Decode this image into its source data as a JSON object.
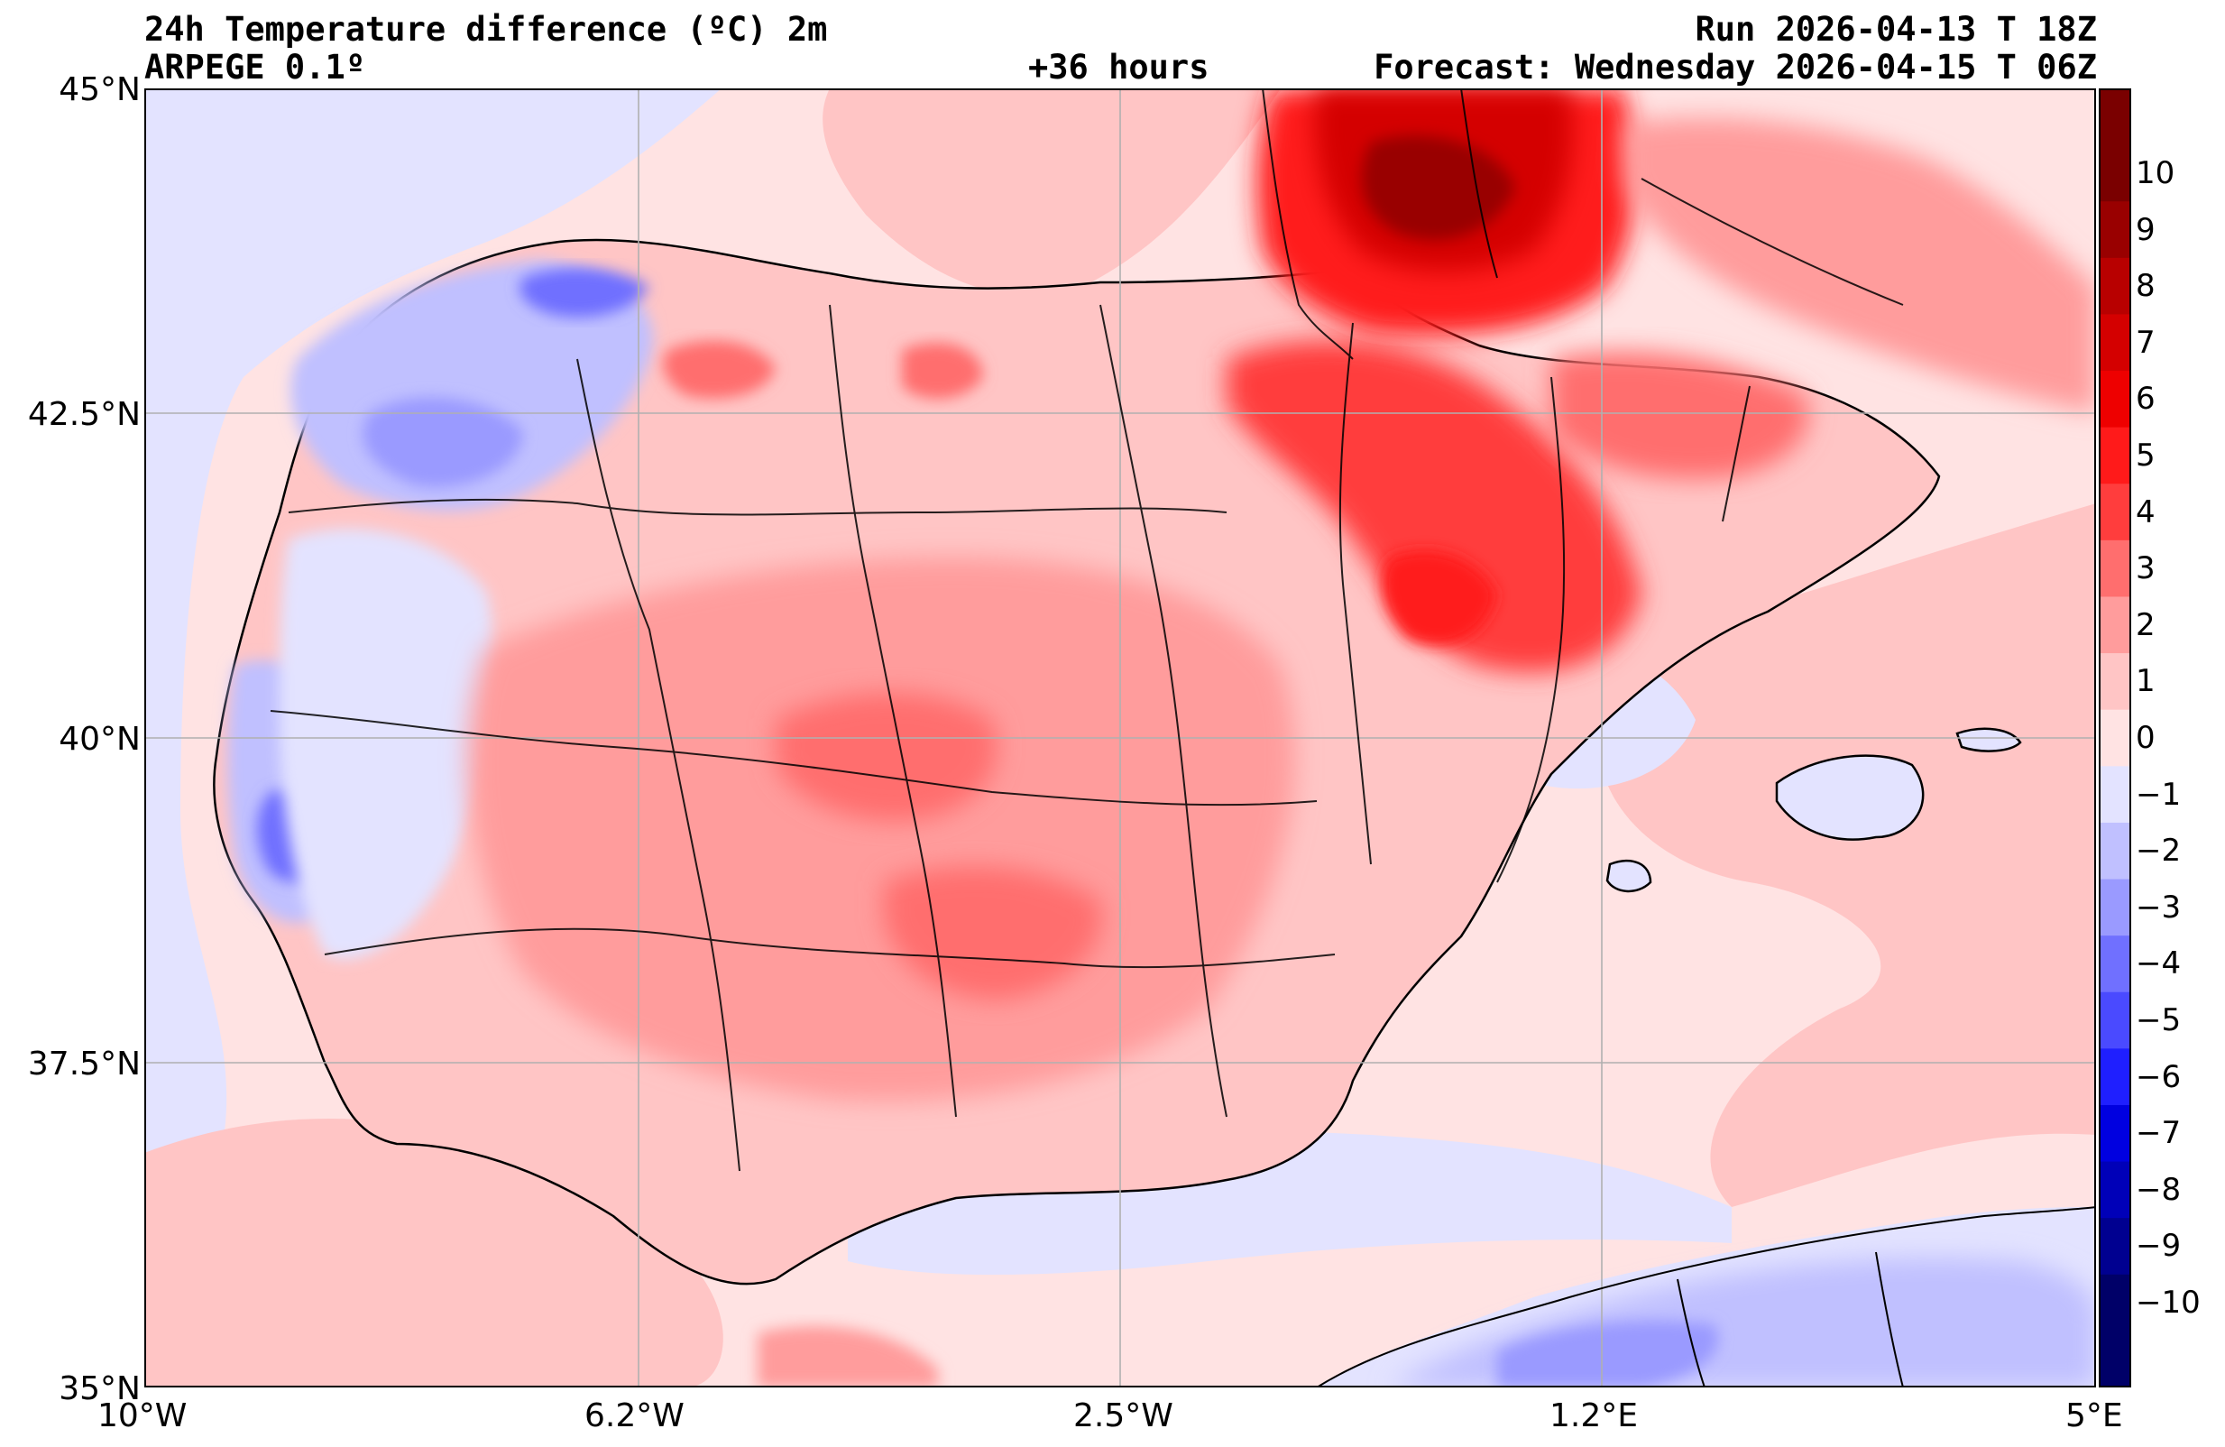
{
  "header": {
    "title": "24h Temperature difference (ºC) 2m",
    "model": "ARPEGE 0.1º",
    "lead_time": "+36 hours",
    "run": "Run 2026-04-13 T 18Z",
    "forecast": "Forecast: Wednesday 2026-04-15 T 06Z"
  },
  "axes": {
    "lat_labels": [
      "45°N",
      "42.5°N",
      "40°N",
      "37.5°N",
      "35°N"
    ],
    "lon_labels": [
      "10°W",
      "6.2°W",
      "2.5°W",
      "1.2°E",
      "5°E"
    ],
    "lat_range": [
      35,
      45
    ],
    "lon_range": [
      -10,
      5
    ],
    "grid": true
  },
  "colorbar": {
    "labels": [
      "10",
      "9",
      "8",
      "7",
      "6",
      "5",
      "4",
      "3",
      "2",
      "1",
      "0",
      "−1",
      "−2",
      "−3",
      "−4",
      "−5",
      "−6",
      "−7",
      "−8",
      "−9",
      "−10"
    ],
    "colors": [
      "#7a0000",
      "#990000",
      "#b80000",
      "#d40000",
      "#ee0000",
      "#ff1a1a",
      "#ff3d3d",
      "#ff6e6e",
      "#ff9c9c",
      "#ffc5c5",
      "#ffe3e3",
      "#e3e3ff",
      "#c0c0ff",
      "#9a9aff",
      "#7070ff",
      "#4a4aff",
      "#1f1fff",
      "#0000e0",
      "#0000b8",
      "#000090",
      "#000068"
    ],
    "range": [
      -11,
      11
    ]
  }
}
